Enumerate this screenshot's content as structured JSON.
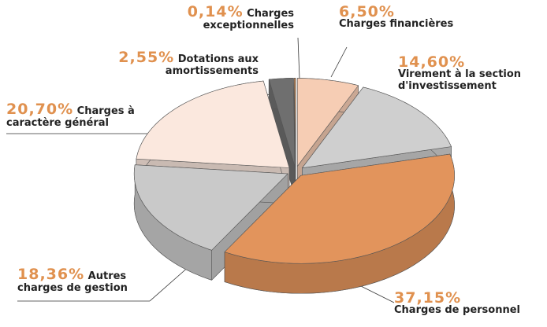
{
  "chart_data": {
    "type": "pie",
    "categories": [
      "Charges financières",
      "Virement à la section d'investissement",
      "Charges de personnel",
      "Autres charges de gestion",
      "Charges à caractère général",
      "Dotations aux amortissements",
      "Charges exceptionnelles"
    ],
    "values": [
      6.5,
      14.6,
      37.15,
      18.36,
      20.7,
      2.55,
      0.14
    ],
    "value_labels": [
      "6,50%",
      "14,60%",
      "37,15%",
      "18,36%",
      "20,70%",
      "2,55%",
      "0,14%"
    ],
    "colors": [
      "#f6cdb4",
      "#cfcfcf",
      "#e2945c",
      "#c9c9c9",
      "#fbe8de",
      "#6f6f6f",
      "#e08c48"
    ]
  }
}
